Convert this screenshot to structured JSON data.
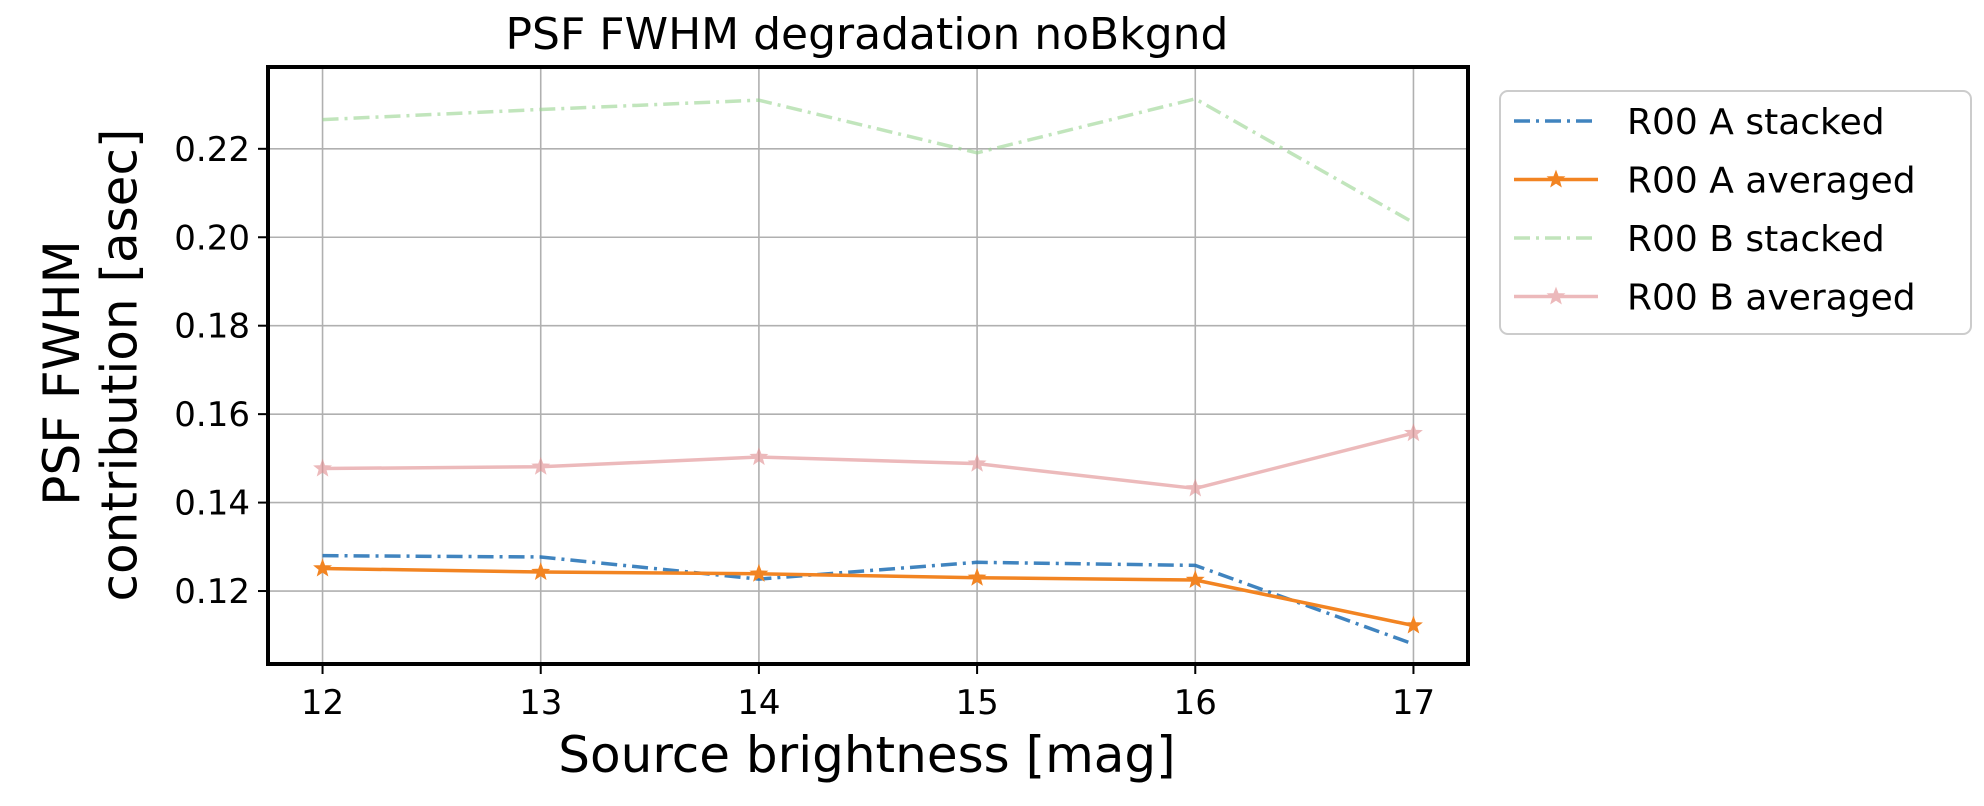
{
  "chart_data": {
    "type": "line",
    "title": "PSF FWHM degradation noBkgnd",
    "xlabel": "Source brightness [mag]",
    "ylabel": [
      "PSF FWHM",
      "contribution [asec]"
    ],
    "x": [
      12,
      13,
      14,
      15,
      16,
      17
    ],
    "xlim": [
      11.75,
      17.25
    ],
    "ylim": [
      0.1035,
      0.2385
    ],
    "xticks": [
      "12",
      "13",
      "14",
      "15",
      "16",
      "17"
    ],
    "yticks": [
      "0.12",
      "0.14",
      "0.16",
      "0.18",
      "0.20",
      "0.22"
    ],
    "grid": true,
    "legend_position": "outside-top-right",
    "series": [
      {
        "name": "R00 A stacked",
        "values": [
          0.128,
          0.1277,
          0.1227,
          0.1265,
          0.1258,
          0.108
        ],
        "color": "#1f6fb4",
        "linestyle": "dashdot",
        "marker": "none",
        "opacity": 0.85
      },
      {
        "name": "R00 A averaged",
        "values": [
          0.1251,
          0.1243,
          0.1239,
          0.123,
          0.1225,
          0.1122
        ],
        "color": "#f28422",
        "linestyle": "solid",
        "marker": "star",
        "opacity": 1
      },
      {
        "name": "R00 B stacked",
        "values": [
          0.2266,
          0.2289,
          0.231,
          0.2191,
          0.2313,
          0.2033
        ],
        "color": "#98d38f",
        "linestyle": "dashdot",
        "marker": "none",
        "opacity": 0.6
      },
      {
        "name": "R00 B averaged",
        "values": [
          0.1477,
          0.1481,
          0.1503,
          0.1488,
          0.1432,
          0.1557
        ],
        "color": "#e08c8e",
        "linestyle": "solid",
        "marker": "star",
        "opacity": 0.6
      }
    ]
  }
}
